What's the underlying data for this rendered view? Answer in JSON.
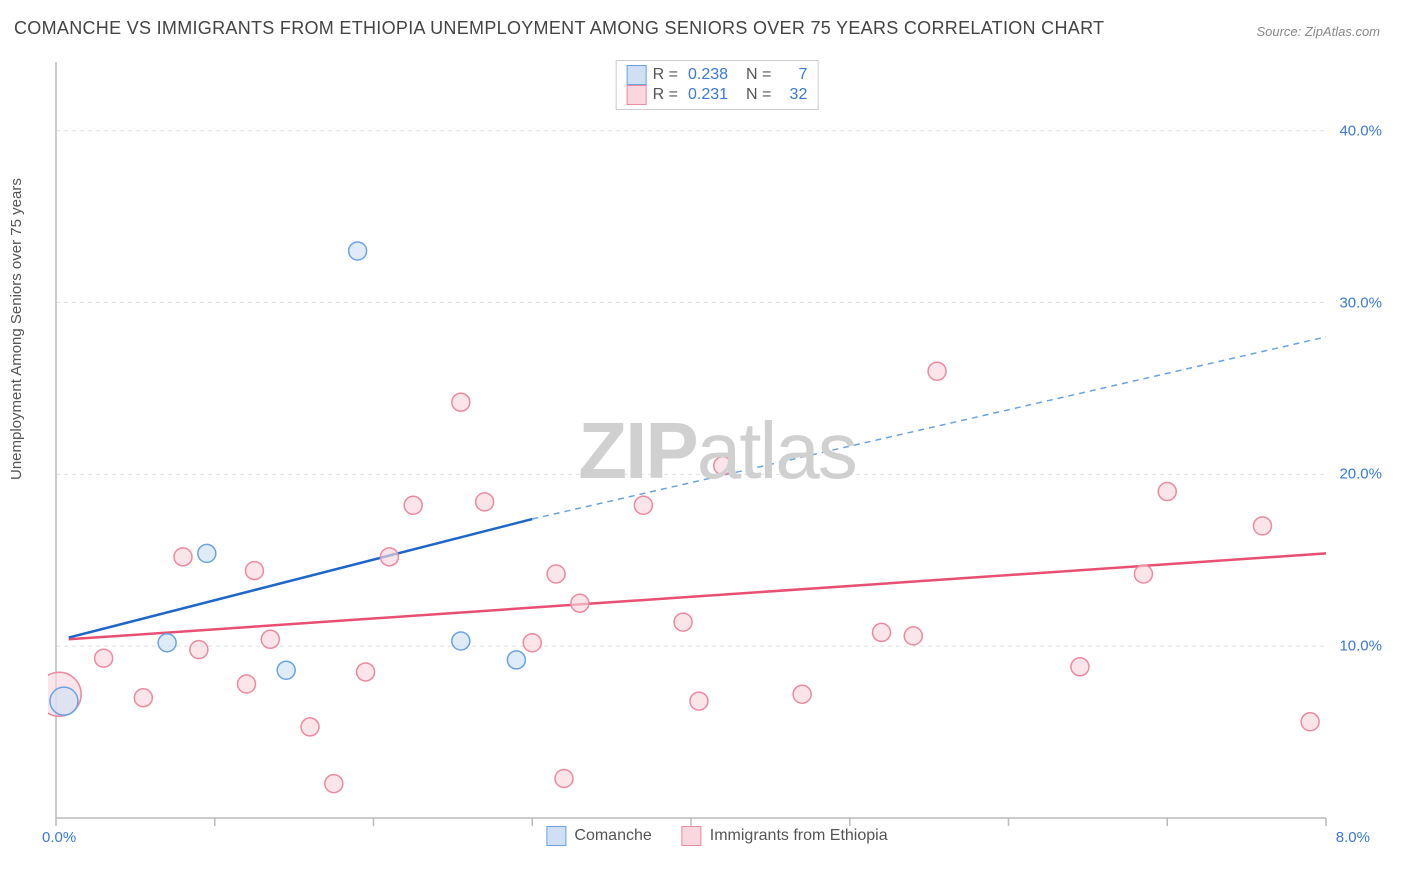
{
  "title": "COMANCHE VS IMMIGRANTS FROM ETHIOPIA UNEMPLOYMENT AMONG SENIORS OVER 75 YEARS CORRELATION CHART",
  "source": "Source: ZipAtlas.com",
  "ylabel": "Unemployment Among Seniors over 75 years",
  "watermark": "ZIPatlas",
  "chart": {
    "type": "scatter",
    "background_color": "#ffffff",
    "grid_color": "#e0e0e0",
    "axis_color": "#bbbbbb",
    "xlim": [
      0,
      8
    ],
    "ylim": [
      0,
      44
    ],
    "x_ticks": [
      0,
      1,
      2,
      3,
      4,
      5,
      6,
      7,
      8
    ],
    "x_tick_labels": {
      "0": "0.0%",
      "8": "8.0%"
    },
    "y_gridlines": [
      10,
      20,
      30,
      40
    ],
    "y_tick_labels": {
      "10": "10.0%",
      "20": "20.0%",
      "30": "30.0%",
      "40": "40.0%"
    },
    "tick_label_color": "#3b78d8",
    "tick_label_fontsize": 15,
    "series": [
      {
        "name": "Comanche",
        "color_fill": "#cfe0f5",
        "color_stroke": "#6ba3e0",
        "marker_radius": 9,
        "R": "0.238",
        "N": "7",
        "points": [
          {
            "x": 0.05,
            "y": 6.8,
            "r": 14
          },
          {
            "x": 0.7,
            "y": 10.2
          },
          {
            "x": 0.95,
            "y": 15.4
          },
          {
            "x": 1.45,
            "y": 8.6
          },
          {
            "x": 1.9,
            "y": 33.0
          },
          {
            "x": 2.55,
            "y": 10.3
          },
          {
            "x": 2.9,
            "y": 9.2
          }
        ],
        "trend": {
          "x1": 0.08,
          "y1": 10.5,
          "x2": 3.0,
          "y2": 17.4,
          "x3": 8.0,
          "y3": 28.0,
          "solid_color": "#1e66c7",
          "dash_color": "#6ba3e0",
          "width": 2.5
        }
      },
      {
        "name": "Immigrants from Ethiopia",
        "color_fill": "#f9d7de",
        "color_stroke": "#ec8aa0",
        "marker_radius": 9,
        "R": "0.231",
        "N": "32",
        "points": [
          {
            "x": 0.02,
            "y": 7.2,
            "r": 22
          },
          {
            "x": 0.3,
            "y": 9.3
          },
          {
            "x": 0.55,
            "y": 7.0
          },
          {
            "x": 0.8,
            "y": 15.2
          },
          {
            "x": 0.9,
            "y": 9.8
          },
          {
            "x": 1.2,
            "y": 7.8
          },
          {
            "x": 1.25,
            "y": 14.4
          },
          {
            "x": 1.35,
            "y": 10.4
          },
          {
            "x": 1.6,
            "y": 5.3
          },
          {
            "x": 1.75,
            "y": 2.0
          },
          {
            "x": 1.95,
            "y": 8.5
          },
          {
            "x": 2.1,
            "y": 15.2
          },
          {
            "x": 2.25,
            "y": 18.2
          },
          {
            "x": 2.55,
            "y": 24.2
          },
          {
            "x": 2.7,
            "y": 18.4
          },
          {
            "x": 3.0,
            "y": 10.2
          },
          {
            "x": 3.15,
            "y": 14.2
          },
          {
            "x": 3.2,
            "y": 2.3
          },
          {
            "x": 3.3,
            "y": 12.5
          },
          {
            "x": 3.7,
            "y": 18.2
          },
          {
            "x": 3.95,
            "y": 11.4
          },
          {
            "x": 4.05,
            "y": 6.8
          },
          {
            "x": 4.2,
            "y": 20.5
          },
          {
            "x": 4.7,
            "y": 7.2
          },
          {
            "x": 5.2,
            "y": 10.8
          },
          {
            "x": 5.4,
            "y": 10.6
          },
          {
            "x": 5.55,
            "y": 26.0
          },
          {
            "x": 6.45,
            "y": 8.8
          },
          {
            "x": 6.85,
            "y": 14.2
          },
          {
            "x": 7.0,
            "y": 19.0
          },
          {
            "x": 7.6,
            "y": 17.0
          },
          {
            "x": 7.9,
            "y": 5.6
          }
        ],
        "trend": {
          "x1": 0.08,
          "y1": 10.4,
          "x2": 8.0,
          "y2": 15.4,
          "solid_color": "#e94f73",
          "width": 2.5
        }
      }
    ]
  },
  "legend_bottom": [
    {
      "label": "Comanche",
      "fill": "#cfe0f5",
      "stroke": "#6ba3e0"
    },
    {
      "label": "Immigrants from Ethiopia",
      "fill": "#f9d7de",
      "stroke": "#ec8aa0"
    }
  ]
}
